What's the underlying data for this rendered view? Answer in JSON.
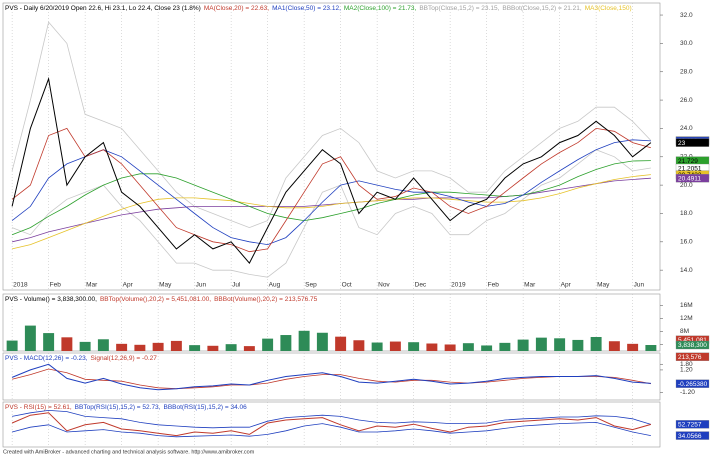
{
  "chart_data": [
    {
      "type": "line",
      "header": [
        {
          "text": "PVS - Daily 6/20/2019 Open 22.6, Hi 23.1, Lo 22.4, Close 23 (1.8%)",
          "color": "#000000"
        },
        {
          "text": "MA(Close,20) = 22.63,",
          "color": "#c0392b"
        },
        {
          "text": "MA1(Close,50) = 23.12,",
          "color": "#1f3fbf"
        },
        {
          "text": "MA2(Close,100) = 21.73,",
          "color": "#2ca02c"
        },
        {
          "text": "BBTop(Close,15,2) = 23.15,",
          "color": "#a0a0a0"
        },
        {
          "text": "BBBot(Close,15,2) = 21.21,",
          "color": "#a0a0a0"
        },
        {
          "text": "MA3(Close,150)",
          "color": "#e6c229"
        }
      ],
      "xlim": [
        -0.5,
        35.5
      ],
      "xticks": [
        {
          "value": 0,
          "label": "2018"
        },
        {
          "value": 2,
          "label": "Feb"
        },
        {
          "value": 4,
          "label": "Mar"
        },
        {
          "value": 6,
          "label": "Apr"
        },
        {
          "value": 8,
          "label": "May"
        },
        {
          "value": 10,
          "label": "Jun"
        },
        {
          "value": 12,
          "label": "Jul"
        },
        {
          "value": 14,
          "label": "Aug"
        },
        {
          "value": 16,
          "label": "Sep"
        },
        {
          "value": 18,
          "label": "Oct"
        },
        {
          "value": 20,
          "label": "Nov"
        },
        {
          "value": 22,
          "label": "Dec"
        },
        {
          "value": 24,
          "label": "2019"
        },
        {
          "value": 26,
          "label": "Feb"
        },
        {
          "value": 28,
          "label": "Mar"
        },
        {
          "value": 30,
          "label": "Apr"
        },
        {
          "value": 32,
          "label": "May"
        },
        {
          "value": 34,
          "label": "Jun"
        }
      ],
      "ylim": [
        12.6,
        32.85
      ],
      "yticks": [
        {
          "value": 32,
          "label": "32.0"
        },
        {
          "value": 30,
          "label": "30.0"
        },
        {
          "value": 28,
          "label": "28.0"
        },
        {
          "value": 26,
          "label": "26.0"
        },
        {
          "value": 24,
          "label": "24.0"
        },
        {
          "value": 22,
          "label": "22.0"
        },
        {
          "value": 20,
          "label": "20.0"
        },
        {
          "value": 18,
          "label": "18.0"
        },
        {
          "value": 16,
          "label": "16.0"
        },
        {
          "value": 14,
          "label": "14.0"
        }
      ],
      "series": [
        {
          "color": "#c8c8c8",
          "values": [
            21,
            26,
            31.5,
            30,
            25,
            24.5,
            24,
            22.5,
            21,
            19.5,
            18.5,
            18,
            17.5,
            17,
            17.5,
            20.5,
            22,
            23.5,
            24,
            23,
            21,
            20.5,
            21,
            21,
            20.5,
            19.5,
            19.5,
            21,
            22,
            23,
            24,
            24.5,
            25.5,
            25.5,
            24.5,
            23.15
          ]
        },
        {
          "color": "#c8c8c8",
          "values": [
            17,
            16.5,
            18,
            19,
            19.5,
            20,
            18.5,
            17.5,
            16,
            14.5,
            14.5,
            14,
            14,
            13.7,
            13.5,
            14.5,
            17,
            19.5,
            20,
            17,
            16.5,
            18,
            18.5,
            18,
            16.5,
            16.5,
            17.5,
            18,
            19,
            20,
            20.5,
            21.5,
            22.5,
            22,
            21,
            21.21
          ]
        },
        {
          "color": "#7b3f9e",
          "values": [
            16,
            16.3,
            16.7,
            17,
            17.3,
            17.6,
            17.9,
            18.1,
            18.3,
            18.4,
            18.5,
            18.5,
            18.5,
            18.5,
            18.5,
            18.5,
            18.5,
            18.6,
            18.7,
            18.8,
            18.9,
            19,
            19,
            19.1,
            19.1,
            19.1,
            19.1,
            19.2,
            19.3,
            19.5,
            19.7,
            19.9,
            20.1,
            20.3,
            20.4,
            20.49
          ]
        },
        {
          "color": "#e6c229",
          "values": [
            15.5,
            15.8,
            16.3,
            16.8,
            17.3,
            17.8,
            18.3,
            18.7,
            19,
            19.1,
            19.1,
            19,
            18.9,
            18.7,
            18.5,
            18.4,
            18.4,
            18.5,
            18.7,
            18.8,
            18.9,
            19,
            19.1,
            19.1,
            19,
            18.9,
            18.8,
            18.8,
            18.9,
            19.1,
            19.4,
            19.8,
            20.1,
            20.4,
            20.6,
            20.74
          ]
        },
        {
          "color": "#2ca02c",
          "values": [
            16.5,
            17,
            17.8,
            18.5,
            19.3,
            20,
            20.5,
            20.8,
            20.8,
            20.5,
            20,
            19.5,
            19,
            18.5,
            18,
            17.7,
            17.5,
            17.7,
            18,
            18.3,
            18.7,
            19,
            19.3,
            19.5,
            19.5,
            19.4,
            19.3,
            19.2,
            19.3,
            19.6,
            20,
            20.6,
            21.1,
            21.5,
            21.7,
            21.73
          ]
        },
        {
          "color": "#1f3fbf",
          "values": [
            17.5,
            18.5,
            20.5,
            21.5,
            22,
            22.5,
            22,
            21,
            20,
            19,
            18,
            17,
            16.3,
            16,
            15.8,
            16.3,
            17.5,
            18.8,
            20,
            20.3,
            20,
            19.7,
            19.5,
            19.5,
            19.2,
            18.8,
            18.5,
            18.7,
            19.3,
            20.2,
            21,
            21.8,
            22.5,
            23,
            23.2,
            23.12
          ]
        },
        {
          "color": "#c0392b",
          "values": [
            19,
            20,
            23.5,
            24,
            22,
            22.5,
            21.5,
            20,
            18.5,
            17,
            16.5,
            16,
            15.8,
            15.3,
            15.5,
            17.5,
            19.5,
            21.5,
            22,
            20,
            19,
            19.2,
            19.8,
            19.5,
            18.5,
            18,
            18.5,
            19.5,
            20.5,
            21.5,
            22.3,
            23,
            24,
            23.8,
            23,
            22.63
          ]
        },
        {
          "color": "#000000",
          "values": [
            18.5,
            24,
            27.5,
            20,
            22,
            23,
            19.5,
            18.5,
            17,
            15.5,
            16.5,
            15.5,
            16,
            14.5,
            17,
            19.5,
            21,
            22.5,
            21.5,
            18,
            19.5,
            19,
            20.5,
            19,
            17.5,
            18.5,
            19,
            20.5,
            21.5,
            22,
            23,
            23.5,
            24.5,
            23.5,
            22,
            23
          ]
        }
      ],
      "end_labels": [
        {
          "value": 23.1549,
          "color": "#d8d8d8",
          "text_color": "#000000"
        },
        {
          "value": 23.116,
          "color": "#1f3fbf",
          "text_color": "#ffffff"
        },
        {
          "value": 23,
          "color": "#000000",
          "text_color": "#ffffff"
        },
        {
          "value": 21.729,
          "color": "#2ca02c",
          "text_color": "#000000"
        },
        {
          "value": 21.2051,
          "color": "#ffffff",
          "text_color": "#000000"
        },
        {
          "value": 20.7433,
          "color": "#e6c229",
          "text_color": "#000000"
        },
        {
          "value": 20.4911,
          "color": "#7b3f9e",
          "text_color": "#ffffff"
        }
      ]
    },
    {
      "type": "bar",
      "header": [
        {
          "text": "PVS - Volume() = 3,838,300.00,",
          "color": "#000000"
        },
        {
          "text": "BBTop(Volume(),20,2) = 5,451,081.00,",
          "color": "#c0392b"
        },
        {
          "text": "BBBot(Volume(),20,2) = 213,576.75",
          "color": "#c0392b"
        }
      ],
      "up_color": "#2e8b57",
      "down_color": "#c0392b",
      "ylim": [
        2000000,
        19500000
      ],
      "yticks": [
        {
          "value": 16000000,
          "label": "16M"
        },
        {
          "value": 12000000,
          "label": "12M"
        },
        {
          "value": 8000000,
          "label": "8M"
        },
        {
          "value": 4000000,
          "label": "4M"
        }
      ],
      "series": [
        {
          "color": "#c0392b",
          "values": [
            5200000,
            9800000,
            7500000,
            6200000,
            4800000,
            5600000,
            4200000,
            3900000,
            4500000,
            5100000,
            3800000,
            3600000,
            4100000,
            3500000,
            5800000,
            6900000,
            8200000,
            7600000,
            6400000,
            5300000,
            4600000,
            4900000,
            4700000,
            4300000,
            4000000,
            4400000,
            3700000,
            4500000,
            5500000,
            6100000,
            5900000,
            5400000,
            6300000,
            5000000,
            4200000,
            3838300
          ]
        }
      ],
      "end_labels": [
        {
          "value": 5451081,
          "label": "5,451,081",
          "color": "#c0392b",
          "text_color": "#ffffff"
        },
        {
          "value": 3838300,
          "label": "3,838,300",
          "color": "#2e8b57",
          "text_color": "#ffffff"
        },
        {
          "value": 213576,
          "label": "213,576",
          "color": "#c0392b",
          "text_color": "#ffffff"
        }
      ]
    },
    {
      "type": "line",
      "header": [
        {
          "text": "PVS - MACD(12,26) = -0.23,",
          "color": "#1f3fbf"
        },
        {
          "text": "Signal(12,26,9) = -0.27",
          "color": "#c0392b"
        }
      ],
      "ylim": [
        -2.0,
        3.0
      ],
      "yticks": [
        {
          "value": 1.8,
          "label": "1.80"
        },
        {
          "value": 1.2,
          "label": "1.20"
        },
        {
          "value": -1.2,
          "label": "-1.20"
        }
      ],
      "series": [
        {
          "color": "#c0392b",
          "values": [
            0.2,
            0.7,
            1.3,
            0.9,
            0.2,
            0.1,
            0,
            -0.4,
            -0.7,
            -0.8,
            -0.7,
            -0.6,
            -0.4,
            -0.4,
            -0.2,
            0.2,
            0.5,
            0.7,
            0.7,
            0.3,
            0,
            -0.1,
            0.1,
            0.1,
            -0.1,
            -0.2,
            -0.1,
            0.1,
            0.3,
            0.4,
            0.5,
            0.5,
            0.5,
            0.4,
            0.1,
            -0.27
          ]
        },
        {
          "color": "#1f3fbf",
          "values": [
            0.4,
            1.2,
            1.8,
            0.3,
            -0.2,
            0.3,
            -0.3,
            -0.7,
            -0.9,
            -0.8,
            -0.6,
            -0.5,
            -0.3,
            -0.4,
            0.1,
            0.5,
            0.7,
            0.9,
            0.5,
            -0.1,
            -0.2,
            0,
            0.2,
            0,
            -0.3,
            -0.2,
            0,
            0.3,
            0.4,
            0.5,
            0.5,
            0.5,
            0.6,
            0.3,
            -0.1,
            -0.23
          ]
        }
      ],
      "end_labels": [
        {
          "value": -0.26538,
          "label": "-0.265380",
          "color": "#1f3fbf",
          "text_color": "#ffffff"
        }
      ]
    },
    {
      "type": "line",
      "header": [
        {
          "text": "PVS - RSI(15) = 52.61,",
          "color": "#c0392b"
        },
        {
          "text": "BBTop(RSI(15),15,2) = 52.73,",
          "color": "#1f3fbf"
        },
        {
          "text": "BBBot(RSI(15),15,2) = 34.06",
          "color": "#1f3fbf"
        }
      ],
      "ylim": [
        15,
        90
      ],
      "yticks": [],
      "series": [
        {
          "color": "#1f3fbf",
          "values": [
            66,
            72,
            76,
            74,
            66,
            64,
            62,
            56,
            52,
            50,
            48,
            47,
            48,
            48,
            58,
            64,
            66,
            68,
            66,
            60,
            56,
            55,
            57,
            56,
            54,
            54,
            55,
            60,
            62,
            63,
            65,
            65,
            67,
            66,
            62,
            52.73
          ]
        },
        {
          "color": "#1f3fbf",
          "values": [
            40,
            48,
            52,
            40,
            42,
            44,
            40,
            38,
            34,
            32,
            33,
            34,
            35,
            33,
            36,
            42,
            50,
            54,
            48,
            40,
            40,
            42,
            45,
            42,
            38,
            40,
            42,
            46,
            50,
            52,
            54,
            55,
            56,
            48,
            40,
            34.06
          ]
        },
        {
          "color": "#c0392b",
          "values": [
            55,
            68,
            72,
            42,
            52,
            56,
            45,
            42,
            38,
            34,
            40,
            38,
            42,
            36,
            55,
            60,
            62,
            64,
            52,
            42,
            50,
            48,
            53,
            46,
            40,
            48,
            50,
            56,
            58,
            60,
            62,
            60,
            64,
            50,
            44,
            52.61
          ]
        }
      ],
      "end_labels": [
        {
          "value": 52.7257,
          "color": "#1f3fbf",
          "text_color": "#ffffff"
        },
        {
          "value": 34.0566,
          "color": "#1f3fbf",
          "text_color": "#ffffff"
        }
      ]
    }
  ],
  "footer": "Created with AmiBroker - advanced charting and technical analysis software. http://www.amibroker.com"
}
